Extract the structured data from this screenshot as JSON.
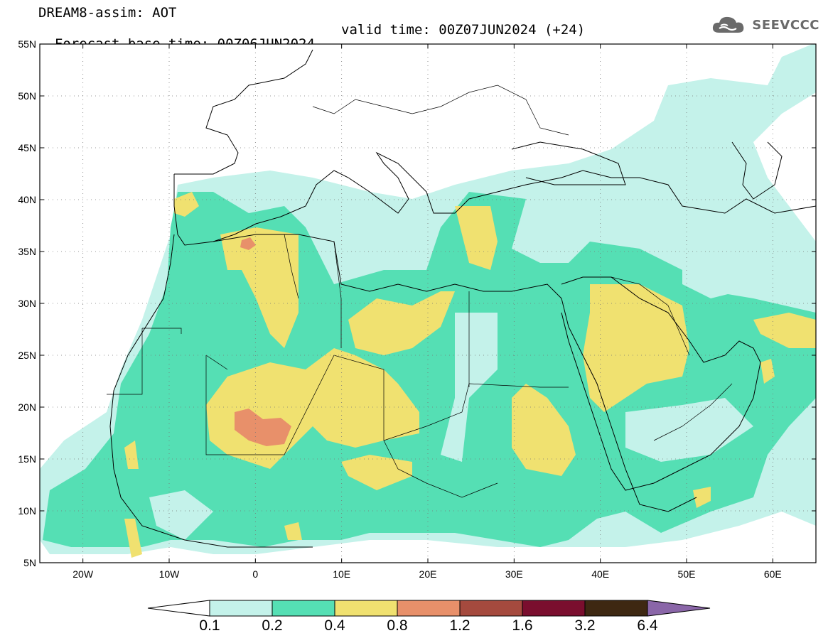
{
  "header": {
    "title": "DREAM8-assim: AOT",
    "base_time": "Forecast base time: 00Z06JUN2024",
    "valid_time": "valid time: 00Z07JUN2024 (+24)"
  },
  "logo": {
    "text": "SEEVCCC",
    "icon": "cloud-icon"
  },
  "map": {
    "lat_labels": [
      "55N",
      "50N",
      "45N",
      "40N",
      "35N",
      "30N",
      "25N",
      "20N",
      "15N",
      "10N",
      "5N"
    ],
    "lat_values": [
      55,
      50,
      45,
      40,
      35,
      30,
      25,
      20,
      15,
      10,
      5
    ],
    "lon_labels": [
      "20W",
      "10W",
      "0",
      "10E",
      "20E",
      "30E",
      "40E",
      "50E",
      "60E"
    ],
    "lon_values": [
      -20,
      -10,
      0,
      10,
      20,
      30,
      40,
      50,
      60
    ],
    "lon_range": [
      -25,
      65
    ],
    "lat_range": [
      5,
      55
    ],
    "grid": "dotted"
  },
  "colorbar": {
    "labels": [
      "0.1",
      "0.2",
      "0.4",
      "0.8",
      "1.2",
      "1.6",
      "3.2",
      "6.4"
    ],
    "colors": [
      "#c4f2ea",
      "#55dfb4",
      "#f0e170",
      "#e8906a",
      "#a54a3e",
      "#7a0e2e",
      "#3e2812",
      "#8a66a8"
    ],
    "under_color": "#ffffff"
  },
  "field_colors": {
    "low": "#c4f2ea",
    "mid": "#55dfb4",
    "high": "#f0e170",
    "max": "#e8906a"
  }
}
